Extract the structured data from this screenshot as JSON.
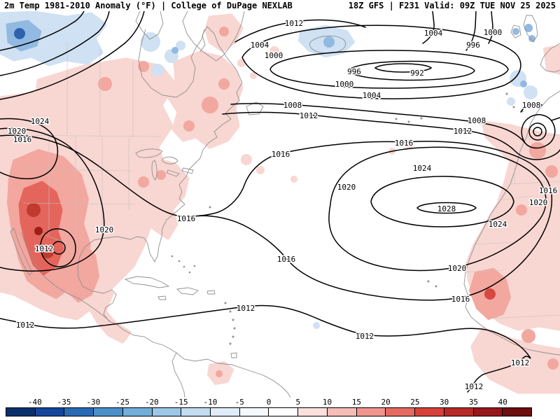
{
  "header": {
    "left": "2m Temp 1981-2010 Anomaly (°F) | College of DuPage NEXLAB",
    "right": "18Z GFS | F231 Valid: 09Z TUE NOV 25 2025"
  },
  "map": {
    "labels": [
      "1012",
      "1004",
      "1000",
      "1004",
      "996",
      "1000",
      "996",
      "992",
      "1000",
      "1004",
      "1008",
      "1012",
      "1008",
      "1012",
      "1008",
      "1016",
      "1016",
      "1024",
      "1020",
      "1016",
      "1024",
      "1020",
      "1028",
      "1016",
      "1020",
      "1024",
      "1016",
      "1020",
      "1012",
      "1016",
      "1020",
      "1016",
      "1012",
      "1012",
      "1012",
      "1012",
      "1012"
    ],
    "contours": {
      "parameter": "MSLP isobars",
      "labels_shown": [
        992,
        996,
        1000,
        1004,
        1008,
        1012,
        1016,
        1020,
        1024,
        1028
      ]
    }
  },
  "colorbar": {
    "units": "°F",
    "min": -40,
    "max": 40,
    "step": 5,
    "ticks": [
      "-40",
      "-35",
      "-30",
      "-25",
      "-20",
      "-15",
      "-10",
      "-5",
      "0",
      "5",
      "10",
      "15",
      "20",
      "25",
      "30",
      "35",
      "40"
    ],
    "colors": [
      "#08306b",
      "#16469c",
      "#2a6ab5",
      "#4a8fca",
      "#72aed9",
      "#9cc7e7",
      "#c2dcf0",
      "#e0ecf8",
      "#f5f9fd",
      "#ffffff",
      "#fbe0dd",
      "#f6bcb6",
      "#ef958d",
      "#e66a61",
      "#d6413a",
      "#b82a25",
      "#97181a",
      "#6e0f10"
    ]
  }
}
